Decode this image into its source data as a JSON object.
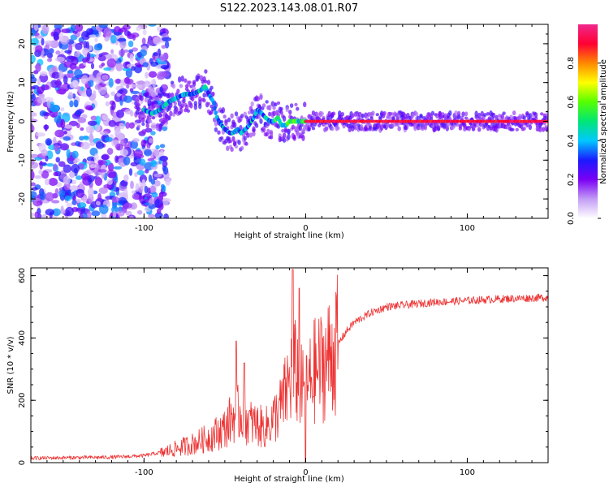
{
  "figure": {
    "title": "S122.2023.143.08.01.R07"
  },
  "chart_data": [
    {
      "type": "heatmap",
      "xlabel": "Height of straight line (km)",
      "ylabel": "Frequency (Hz)",
      "xlim": [
        -170,
        150
      ],
      "ylim": [
        -25,
        25
      ],
      "xticks": [
        {
          "value": -100,
          "label": "-100"
        },
        {
          "value": 0,
          "label": "0"
        },
        {
          "value": 100,
          "label": "100"
        }
      ],
      "yticks": [
        {
          "value": -20,
          "label": "-20"
        },
        {
          "value": -10,
          "label": "-10"
        },
        {
          "value": 0,
          "label": "0"
        },
        {
          "value": 10,
          "label": "10"
        },
        {
          "value": 20,
          "label": "20"
        }
      ],
      "grid": false,
      "ridge": {
        "x": [
          -100,
          -95,
          -90,
          -85,
          -80,
          -75,
          -70,
          -65,
          -62,
          -60,
          -57,
          -55,
          -52,
          -50,
          -47,
          -45,
          -42,
          -40,
          -37,
          -35,
          -32,
          -30,
          -27,
          -25,
          -22,
          -20,
          -17,
          -15,
          -12,
          -10,
          -7,
          -5,
          -2,
          0,
          20,
          50,
          80,
          110,
          150
        ],
        "y": [
          3,
          2,
          3,
          5,
          6,
          7,
          7,
          8,
          9,
          7,
          5,
          1,
          -1,
          -2,
          -3,
          -3,
          -2,
          -3,
          -2,
          -1,
          1,
          3,
          2,
          1,
          0,
          0,
          1,
          -1,
          -1,
          0,
          0,
          0,
          0,
          0,
          0,
          0,
          0,
          0,
          0
        ]
      },
      "colorbar": {
        "label": "Normalized spectral amplitude",
        "range": [
          0,
          1
        ],
        "ticks": [
          {
            "value": 0.0,
            "label": "0.0"
          },
          {
            "value": 0.2,
            "label": "0.2"
          },
          {
            "value": 0.4,
            "label": "0.4"
          },
          {
            "value": 0.6,
            "label": "0.6"
          },
          {
            "value": 0.8,
            "label": "0.8"
          }
        ],
        "colors": [
          "#ffffff",
          "#c39cf5",
          "#7a00f5",
          "#1a1aff",
          "#00c8ff",
          "#00e676",
          "#55ff00",
          "#ffff00",
          "#ff8800",
          "#ff0033",
          "#f0288c"
        ]
      }
    },
    {
      "type": "line",
      "xlabel": "Height of straight line (km)",
      "ylabel": "SNR (10 * v/v)",
      "xlim": [
        -170,
        150
      ],
      "ylim": [
        0,
        625
      ],
      "xticks": [
        {
          "value": -100,
          "label": "-100"
        },
        {
          "value": 0,
          "label": "0"
        },
        {
          "value": 100,
          "label": "100"
        }
      ],
      "yticks": [
        {
          "value": 0,
          "label": "0"
        },
        {
          "value": 200,
          "label": "200"
        },
        {
          "value": 400,
          "label": "400"
        },
        {
          "value": 600,
          "label": "600"
        }
      ],
      "grid": false,
      "color": "#ee3333",
      "envelope": {
        "x": [
          -170,
          -140,
          -120,
          -100,
          -90,
          -80,
          -70,
          -60,
          -50,
          -45,
          -40,
          -35,
          -30,
          -25,
          -20,
          -15,
          -10,
          -8,
          -5,
          -2,
          0,
          2,
          5,
          10,
          15,
          20,
          25,
          30,
          40,
          50,
          60,
          80,
          100,
          120,
          150
        ],
        "y": [
          12,
          14,
          15,
          20,
          30,
          45,
          60,
          80,
          110,
          150,
          160,
          130,
          120,
          110,
          140,
          180,
          260,
          300,
          280,
          230,
          220,
          250,
          290,
          310,
          340,
          380,
          420,
          450,
          480,
          500,
          505,
          515,
          520,
          525,
          530
        ]
      },
      "peaks": [
        {
          "x": -43,
          "y": 390
        },
        {
          "x": -38,
          "y": 320
        },
        {
          "x": -8,
          "y": 620
        },
        {
          "x": -4,
          "y": 560
        },
        {
          "x": 0,
          "y": 550
        }
      ]
    }
  ]
}
